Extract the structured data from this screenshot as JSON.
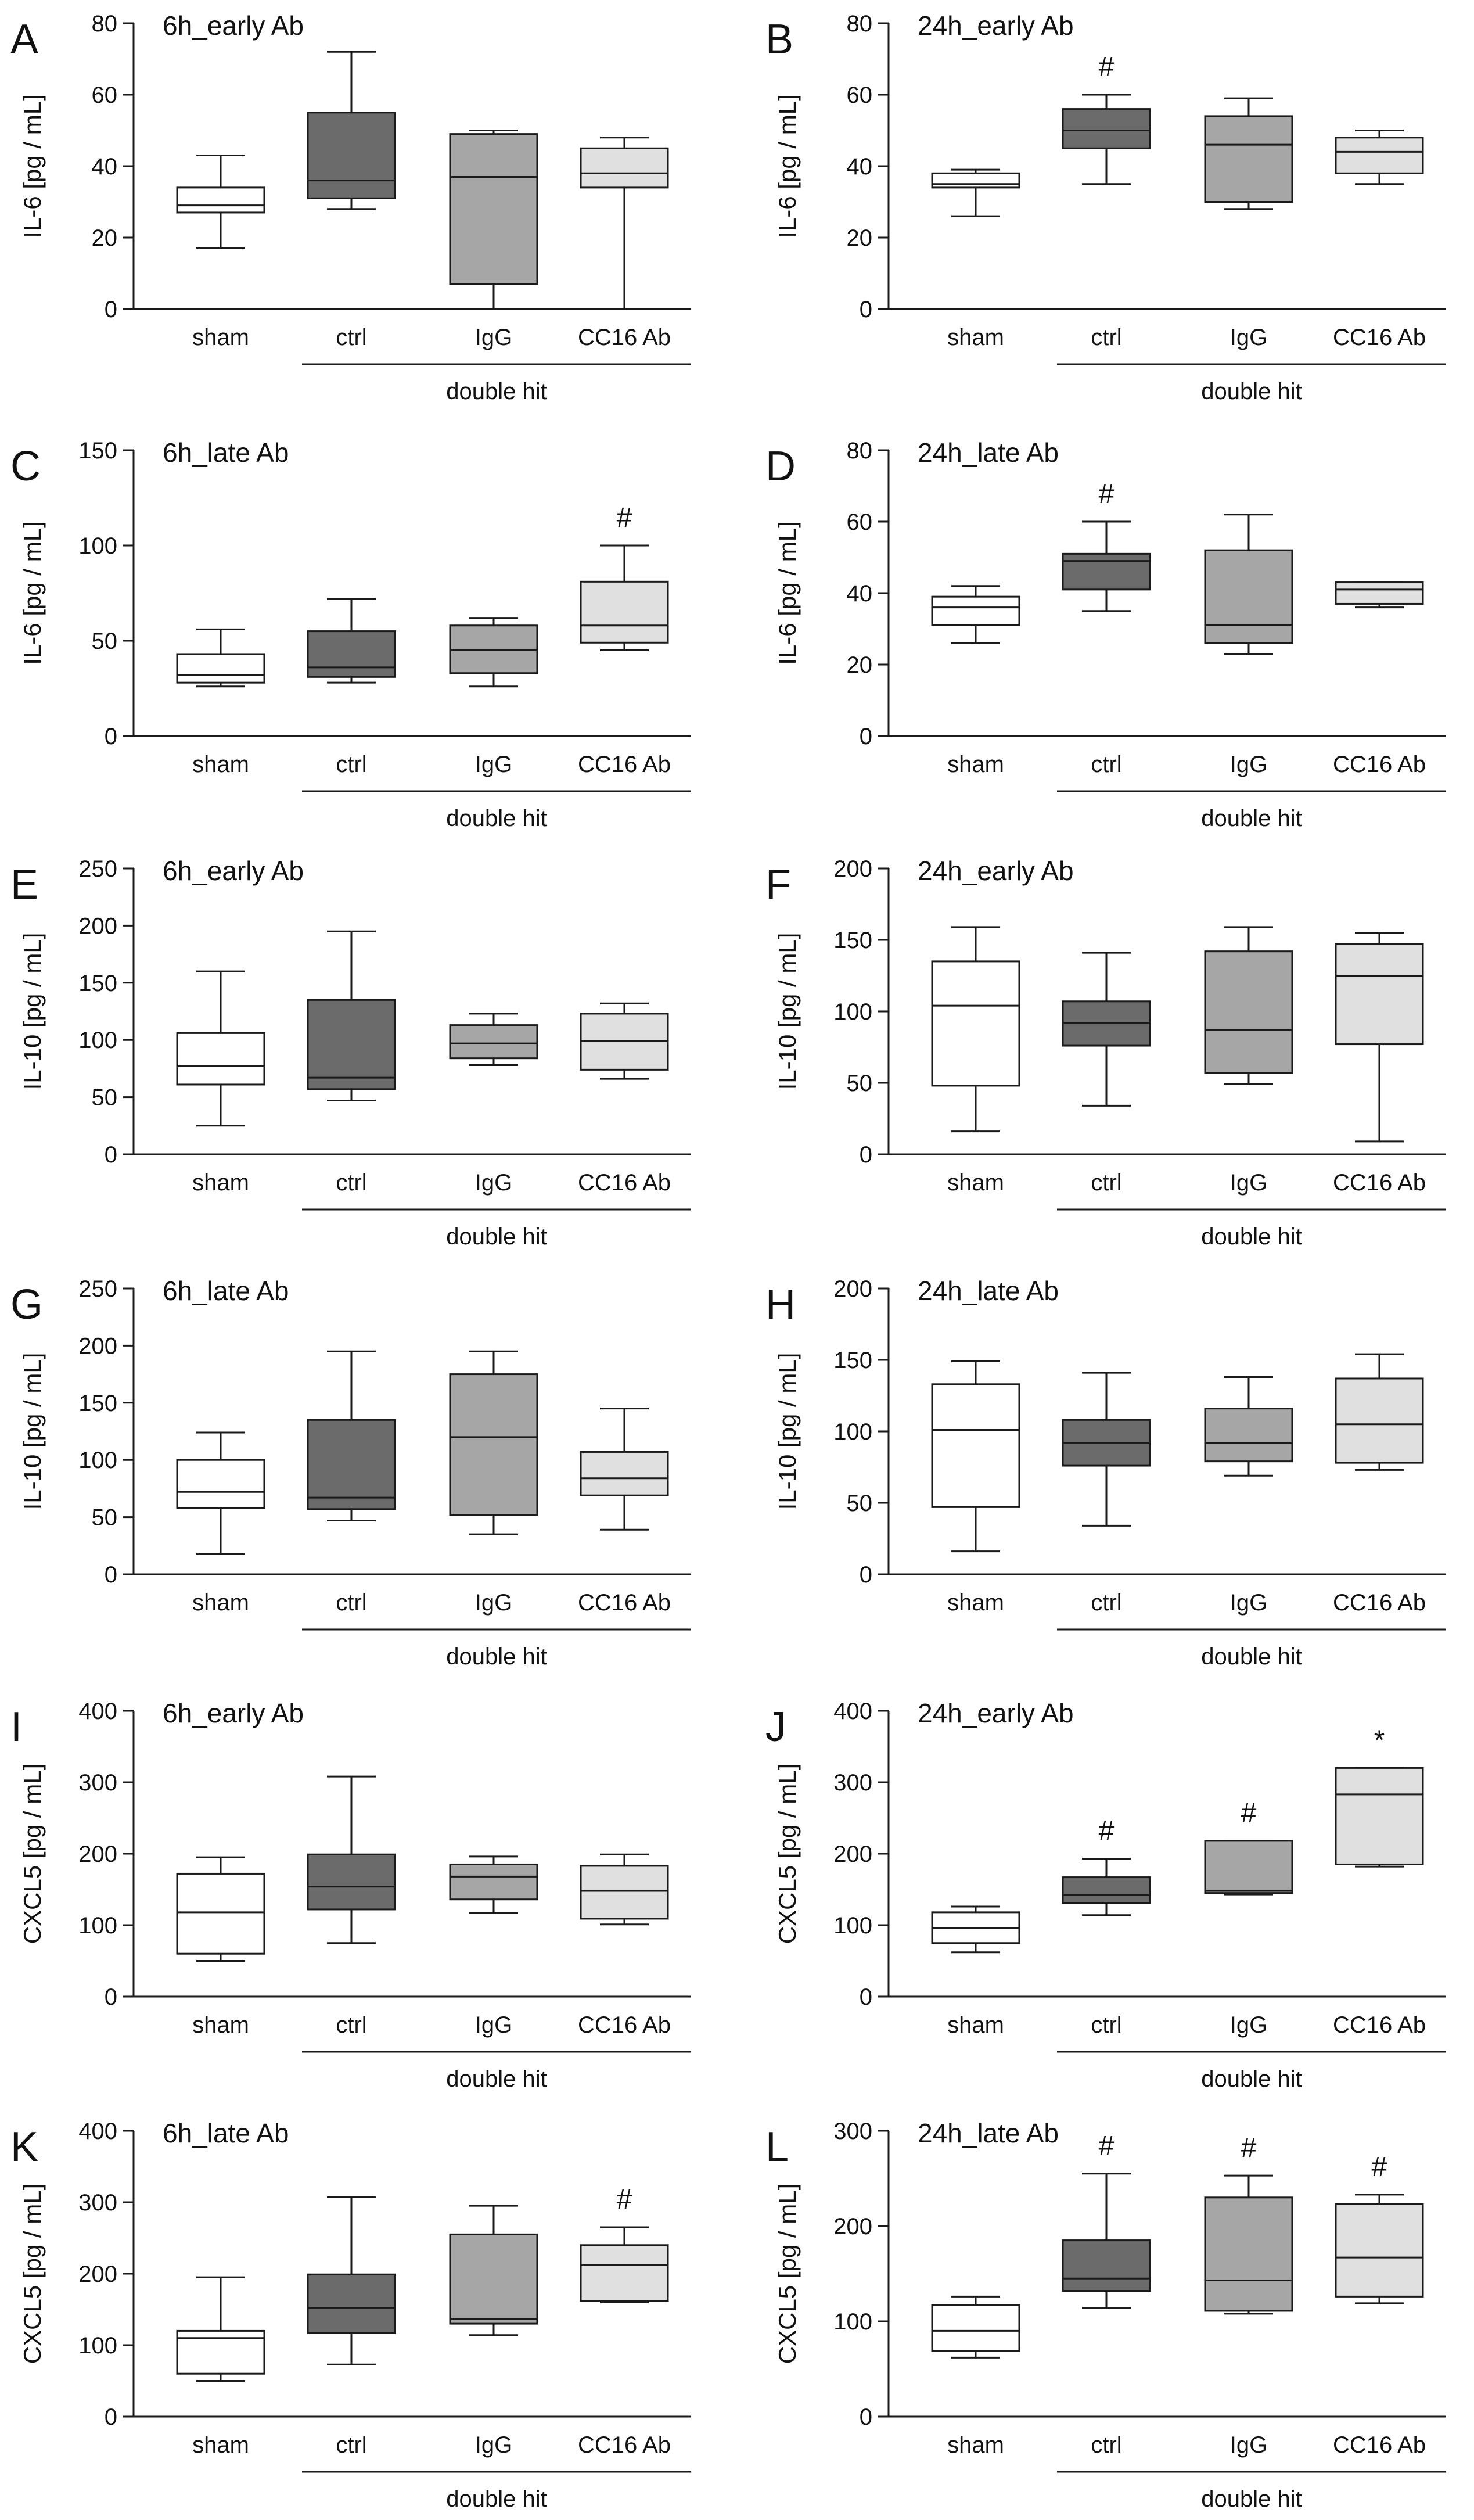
{
  "figure": {
    "group_label": "double hit",
    "colors": {
      "sham": "#ffffff",
      "ctrl": "#6b6b6b",
      "IgG": "#a6a6a6",
      "CC16 Ab": "#e0e0e0",
      "stroke": "#1a1a1a"
    }
  },
  "chart_data": [
    {
      "type": "box",
      "panel": "A",
      "title": "6h_early Ab",
      "ylabel": "IL-6 [pg / mL]",
      "ylim": [
        0,
        80
      ],
      "yticks": [
        0,
        20,
        40,
        60,
        80
      ],
      "categories": [
        "sham",
        "ctrl",
        "IgG",
        "CC16 Ab"
      ],
      "boxes": [
        {
          "min": 17,
          "q1": 27,
          "median": 29,
          "q3": 34,
          "max": 43,
          "mark": ""
        },
        {
          "min": 28,
          "q1": 31,
          "median": 36,
          "q3": 55,
          "max": 72,
          "mark": ""
        },
        {
          "min": 0,
          "q1": 7,
          "median": 37,
          "q3": 49,
          "max": 50,
          "mark": ""
        },
        {
          "min": 0,
          "q1": 34,
          "median": 38,
          "q3": 45,
          "max": 48,
          "mark": ""
        }
      ]
    },
    {
      "type": "box",
      "panel": "B",
      "title": "24h_early Ab",
      "ylabel": "IL-6 [pg / mL]",
      "ylim": [
        0,
        80
      ],
      "yticks": [
        0,
        20,
        40,
        60,
        80
      ],
      "categories": [
        "sham",
        "ctrl",
        "IgG",
        "CC16 Ab"
      ],
      "boxes": [
        {
          "min": 26,
          "q1": 34,
          "median": 35,
          "q3": 38,
          "max": 39,
          "mark": ""
        },
        {
          "min": 35,
          "q1": 45,
          "median": 50,
          "q3": 56,
          "max": 60,
          "mark": "#"
        },
        {
          "min": 28,
          "q1": 30,
          "median": 46,
          "q3": 54,
          "max": 59,
          "mark": ""
        },
        {
          "min": 35,
          "q1": 38,
          "median": 44,
          "q3": 48,
          "max": 50,
          "mark": ""
        }
      ]
    },
    {
      "type": "box",
      "panel": "C",
      "title": "6h_late Ab",
      "ylabel": "IL-6 [pg / mL]",
      "ylim": [
        0,
        150
      ],
      "yticks": [
        0,
        50,
        100,
        150
      ],
      "categories": [
        "sham",
        "ctrl",
        "IgG",
        "CC16 Ab"
      ],
      "boxes": [
        {
          "min": 26,
          "q1": 28,
          "median": 32,
          "q3": 43,
          "max": 56,
          "mark": ""
        },
        {
          "min": 28,
          "q1": 31,
          "median": 36,
          "q3": 55,
          "max": 72,
          "mark": ""
        },
        {
          "min": 26,
          "q1": 33,
          "median": 45,
          "q3": 58,
          "max": 62,
          "mark": ""
        },
        {
          "min": 45,
          "q1": 49,
          "median": 58,
          "q3": 81,
          "max": 100,
          "mark": "#"
        }
      ]
    },
    {
      "type": "box",
      "panel": "D",
      "title": "24h_late Ab",
      "ylabel": "IL-6 [pg / mL]",
      "ylim": [
        0,
        80
      ],
      "yticks": [
        0,
        20,
        40,
        60,
        80
      ],
      "categories": [
        "sham",
        "ctrl",
        "IgG",
        "CC16 Ab"
      ],
      "boxes": [
        {
          "min": 26,
          "q1": 31,
          "median": 36,
          "q3": 39,
          "max": 42,
          "mark": ""
        },
        {
          "min": 35,
          "q1": 41,
          "median": 49,
          "q3": 51,
          "max": 60,
          "mark": "#"
        },
        {
          "min": 23,
          "q1": 26,
          "median": 31,
          "q3": 52,
          "max": 62,
          "mark": ""
        },
        {
          "min": 36,
          "q1": 37,
          "median": 41,
          "q3": 43,
          "max": 43,
          "mark": ""
        }
      ]
    },
    {
      "type": "box",
      "panel": "E",
      "title": "6h_early Ab",
      "ylabel": "IL-10 [pg / mL]",
      "ylim": [
        0,
        250
      ],
      "yticks": [
        0,
        50,
        100,
        150,
        200,
        250
      ],
      "categories": [
        "sham",
        "ctrl",
        "IgG",
        "CC16 Ab"
      ],
      "boxes": [
        {
          "min": 25,
          "q1": 61,
          "median": 77,
          "q3": 106,
          "max": 160,
          "mark": ""
        },
        {
          "min": 47,
          "q1": 57,
          "median": 67,
          "q3": 135,
          "max": 195,
          "mark": ""
        },
        {
          "min": 78,
          "q1": 84,
          "median": 97,
          "q3": 113,
          "max": 123,
          "mark": ""
        },
        {
          "min": 66,
          "q1": 74,
          "median": 99,
          "q3": 123,
          "max": 132,
          "mark": ""
        }
      ]
    },
    {
      "type": "box",
      "panel": "F",
      "title": "24h_early Ab",
      "ylabel": "IL-10 [pg / mL]",
      "ylim": [
        0,
        200
      ],
      "yticks": [
        0,
        50,
        100,
        150,
        200
      ],
      "categories": [
        "sham",
        "ctrl",
        "IgG",
        "CC16 Ab"
      ],
      "boxes": [
        {
          "min": 16,
          "q1": 48,
          "median": 104,
          "q3": 135,
          "max": 159,
          "mark": ""
        },
        {
          "min": 34,
          "q1": 76,
          "median": 92,
          "q3": 107,
          "max": 141,
          "mark": ""
        },
        {
          "min": 49,
          "q1": 57,
          "median": 87,
          "q3": 142,
          "max": 159,
          "mark": ""
        },
        {
          "min": 9,
          "q1": 77,
          "median": 125,
          "q3": 147,
          "max": 155,
          "mark": ""
        }
      ]
    },
    {
      "type": "box",
      "panel": "G",
      "title": "6h_late Ab",
      "ylabel": "IL-10 [pg / mL]",
      "ylim": [
        0,
        250
      ],
      "yticks": [
        0,
        50,
        100,
        150,
        200,
        250
      ],
      "categories": [
        "sham",
        "ctrl",
        "IgG",
        "CC16 Ab"
      ],
      "boxes": [
        {
          "min": 18,
          "q1": 58,
          "median": 72,
          "q3": 100,
          "max": 124,
          "mark": ""
        },
        {
          "min": 47,
          "q1": 57,
          "median": 67,
          "q3": 135,
          "max": 195,
          "mark": ""
        },
        {
          "min": 35,
          "q1": 52,
          "median": 120,
          "q3": 175,
          "max": 195,
          "mark": ""
        },
        {
          "min": 39,
          "q1": 69,
          "median": 84,
          "q3": 107,
          "max": 145,
          "mark": ""
        }
      ]
    },
    {
      "type": "box",
      "panel": "H",
      "title": "24h_late Ab",
      "ylabel": "IL-10 [pg / mL]",
      "ylim": [
        0,
        200
      ],
      "yticks": [
        0,
        50,
        100,
        150,
        200
      ],
      "categories": [
        "sham",
        "ctrl",
        "IgG",
        "CC16 Ab"
      ],
      "boxes": [
        {
          "min": 16,
          "q1": 47,
          "median": 101,
          "q3": 133,
          "max": 149,
          "mark": ""
        },
        {
          "min": 34,
          "q1": 76,
          "median": 92,
          "q3": 108,
          "max": 141,
          "mark": ""
        },
        {
          "min": 69,
          "q1": 79,
          "median": 92,
          "q3": 116,
          "max": 138,
          "mark": ""
        },
        {
          "min": 73,
          "q1": 78,
          "median": 105,
          "q3": 137,
          "max": 154,
          "mark": ""
        }
      ]
    },
    {
      "type": "box",
      "panel": "I",
      "title": "6h_early Ab",
      "ylabel": "CXCL5 [pg / mL]",
      "ylim": [
        0,
        400
      ],
      "yticks": [
        0,
        100,
        200,
        300,
        400
      ],
      "categories": [
        "sham",
        "ctrl",
        "IgG",
        "CC16 Ab"
      ],
      "boxes": [
        {
          "min": 50,
          "q1": 60,
          "median": 118,
          "q3": 172,
          "max": 195,
          "mark": ""
        },
        {
          "min": 75,
          "q1": 122,
          "median": 154,
          "q3": 199,
          "max": 308,
          "mark": ""
        },
        {
          "min": 117,
          "q1": 136,
          "median": 168,
          "q3": 185,
          "max": 196,
          "mark": ""
        },
        {
          "min": 101,
          "q1": 109,
          "median": 148,
          "q3": 183,
          "max": 199,
          "mark": ""
        }
      ]
    },
    {
      "type": "box",
      "panel": "J",
      "title": "24h_early Ab",
      "ylabel": "CXCL5 [pg / mL]",
      "ylim": [
        0,
        400
      ],
      "yticks": [
        0,
        100,
        200,
        300,
        400
      ],
      "categories": [
        "sham",
        "ctrl",
        "IgG",
        "CC16 Ab"
      ],
      "boxes": [
        {
          "min": 62,
          "q1": 75,
          "median": 96,
          "q3": 118,
          "max": 126,
          "mark": ""
        },
        {
          "min": 114,
          "q1": 131,
          "median": 142,
          "q3": 167,
          "max": 193,
          "mark": "#"
        },
        {
          "min": 143,
          "q1": 145,
          "median": 148,
          "q3": 218,
          "max": 218,
          "mark": "#"
        },
        {
          "min": 182,
          "q1": 185,
          "median": 283,
          "q3": 320,
          "max": 320,
          "mark": "*"
        }
      ]
    },
    {
      "type": "box",
      "panel": "K",
      "title": "6h_late Ab",
      "ylabel": "CXCL5 [pg / mL]",
      "ylim": [
        0,
        400
      ],
      "yticks": [
        0,
        100,
        200,
        300,
        400
      ],
      "categories": [
        "sham",
        "ctrl",
        "IgG",
        "CC16 Ab"
      ],
      "boxes": [
        {
          "min": 50,
          "q1": 60,
          "median": 110,
          "q3": 120,
          "max": 195,
          "mark": ""
        },
        {
          "min": 73,
          "q1": 117,
          "median": 152,
          "q3": 199,
          "max": 307,
          "mark": ""
        },
        {
          "min": 114,
          "q1": 130,
          "median": 137,
          "q3": 255,
          "max": 295,
          "mark": ""
        },
        {
          "min": 160,
          "q1": 162,
          "median": 212,
          "q3": 240,
          "max": 265,
          "mark": "#"
        }
      ]
    },
    {
      "type": "box",
      "panel": "L",
      "title": "24h_late Ab",
      "ylabel": "CXCL5 [pg / mL]",
      "ylim": [
        0,
        300
      ],
      "yticks": [
        0,
        100,
        200,
        300
      ],
      "categories": [
        "sham",
        "ctrl",
        "IgG",
        "CC16 Ab"
      ],
      "boxes": [
        {
          "min": 62,
          "q1": 69,
          "median": 90,
          "q3": 117,
          "max": 126,
          "mark": ""
        },
        {
          "min": 114,
          "q1": 132,
          "median": 145,
          "q3": 185,
          "max": 255,
          "mark": "#"
        },
        {
          "min": 108,
          "q1": 111,
          "median": 143,
          "q3": 230,
          "max": 253,
          "mark": "#"
        },
        {
          "min": 119,
          "q1": 126,
          "median": 167,
          "q3": 223,
          "max": 233,
          "mark": "#"
        }
      ]
    }
  ]
}
